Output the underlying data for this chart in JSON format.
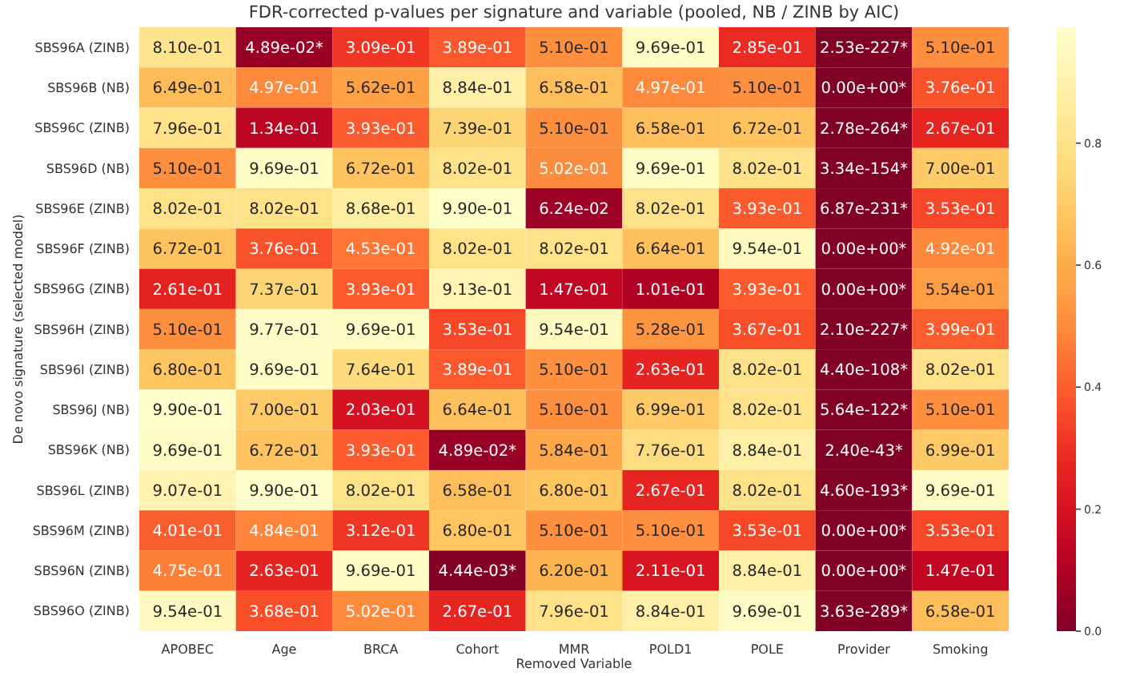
{
  "chart_data": {
    "type": "heatmap",
    "title": "FDR-corrected p-values per signature and variable (pooled, NB / ZINB by AIC)",
    "xlabel": "Removed Variable",
    "ylabel": "De novo signature (selected model)",
    "categories": [
      "APOBEC",
      "Age",
      "BRCA",
      "Cohort",
      "MMR",
      "POLD1",
      "POLE",
      "Provider",
      "Smoking"
    ],
    "y_categories": [
      "SBS96A (ZINB)",
      "SBS96B (NB)",
      "SBS96C (ZINB)",
      "SBS96D (NB)",
      "SBS96E (ZINB)",
      "SBS96F (ZINB)",
      "SBS96G (ZINB)",
      "SBS96H (ZINB)",
      "SBS96I (ZINB)",
      "SBS96J (NB)",
      "SBS96K (NB)",
      "SBS96L (ZINB)",
      "SBS96M (ZINB)",
      "SBS96N (ZINB)",
      "SBS96O (ZINB)"
    ],
    "cells": [
      [
        0.81,
        0.0489,
        0.309,
        0.389,
        0.51,
        0.969,
        0.285,
        2.53e-227,
        0.51
      ],
      [
        0.649,
        0.497,
        0.562,
        0.884,
        0.658,
        0.497,
        0.51,
        0,
        0.376
      ],
      [
        0.796,
        0.134,
        0.393,
        0.739,
        0.51,
        0.658,
        0.672,
        2.78e-264,
        0.267
      ],
      [
        0.51,
        0.969,
        0.672,
        0.802,
        0.502,
        0.969,
        0.802,
        3.34e-154,
        0.7
      ],
      [
        0.802,
        0.802,
        0.868,
        0.99,
        0.0624,
        0.802,
        0.393,
        6.87e-231,
        0.353
      ],
      [
        0.672,
        0.376,
        0.453,
        0.802,
        0.802,
        0.664,
        0.954,
        0,
        0.492
      ],
      [
        0.261,
        0.737,
        0.393,
        0.913,
        0.147,
        0.101,
        0.393,
        0,
        0.554
      ],
      [
        0.51,
        0.977,
        0.969,
        0.353,
        0.954,
        0.528,
        0.367,
        2.1e-227,
        0.399
      ],
      [
        0.68,
        0.969,
        0.764,
        0.389,
        0.51,
        0.263,
        0.802,
        4.4e-108,
        0.802
      ],
      [
        0.99,
        0.7,
        0.203,
        0.664,
        0.51,
        0.699,
        0.802,
        5.64e-122,
        0.51
      ],
      [
        0.969,
        0.672,
        0.393,
        0.0489,
        0.584,
        0.776,
        0.884,
        2.4e-43,
        0.699
      ],
      [
        0.907,
        0.99,
        0.802,
        0.658,
        0.68,
        0.267,
        0.802,
        4.6e-193,
        0.969
      ],
      [
        0.401,
        0.484,
        0.312,
        0.68,
        0.51,
        0.51,
        0.353,
        0,
        0.353
      ],
      [
        0.475,
        0.263,
        0.969,
        0.00444,
        0.62,
        0.211,
        0.884,
        0,
        0.147
      ],
      [
        0.954,
        0.368,
        0.502,
        0.267,
        0.796,
        0.884,
        0.969,
        3.63e-289,
        0.658
      ]
    ],
    "cell_labels": [
      [
        "8.10e-01",
        "4.89e-02*",
        "3.09e-01",
        "3.89e-01",
        "5.10e-01",
        "9.69e-01",
        "2.85e-01",
        "2.53e-227*",
        "5.10e-01"
      ],
      [
        "6.49e-01",
        "4.97e-01",
        "5.62e-01",
        "8.84e-01",
        "6.58e-01",
        "4.97e-01",
        "5.10e-01",
        "0.00e+00*",
        "3.76e-01"
      ],
      [
        "7.96e-01",
        "1.34e-01",
        "3.93e-01",
        "7.39e-01",
        "5.10e-01",
        "6.58e-01",
        "6.72e-01",
        "2.78e-264*",
        "2.67e-01"
      ],
      [
        "5.10e-01",
        "9.69e-01",
        "6.72e-01",
        "8.02e-01",
        "5.02e-01",
        "9.69e-01",
        "8.02e-01",
        "3.34e-154*",
        "7.00e-01"
      ],
      [
        "8.02e-01",
        "8.02e-01",
        "8.68e-01",
        "9.90e-01",
        "6.24e-02",
        "8.02e-01",
        "3.93e-01",
        "6.87e-231*",
        "3.53e-01"
      ],
      [
        "6.72e-01",
        "3.76e-01",
        "4.53e-01",
        "8.02e-01",
        "8.02e-01",
        "6.64e-01",
        "9.54e-01",
        "0.00e+00*",
        "4.92e-01"
      ],
      [
        "2.61e-01",
        "7.37e-01",
        "3.93e-01",
        "9.13e-01",
        "1.47e-01",
        "1.01e-01",
        "3.93e-01",
        "0.00e+00*",
        "5.54e-01"
      ],
      [
        "5.10e-01",
        "9.77e-01",
        "9.69e-01",
        "3.53e-01",
        "9.54e-01",
        "5.28e-01",
        "3.67e-01",
        "2.10e-227*",
        "3.99e-01"
      ],
      [
        "6.80e-01",
        "9.69e-01",
        "7.64e-01",
        "3.89e-01",
        "5.10e-01",
        "2.63e-01",
        "8.02e-01",
        "4.40e-108*",
        "8.02e-01"
      ],
      [
        "9.90e-01",
        "7.00e-01",
        "2.03e-01",
        "6.64e-01",
        "5.10e-01",
        "6.99e-01",
        "8.02e-01",
        "5.64e-122*",
        "5.10e-01"
      ],
      [
        "9.69e-01",
        "6.72e-01",
        "3.93e-01",
        "4.89e-02*",
        "5.84e-01",
        "7.76e-01",
        "8.84e-01",
        "2.40e-43*",
        "6.99e-01"
      ],
      [
        "9.07e-01",
        "9.90e-01",
        "8.02e-01",
        "6.58e-01",
        "6.80e-01",
        "2.67e-01",
        "8.02e-01",
        "4.60e-193*",
        "9.69e-01"
      ],
      [
        "4.01e-01",
        "4.84e-01",
        "3.12e-01",
        "6.80e-01",
        "5.10e-01",
        "5.10e-01",
        "3.53e-01",
        "0.00e+00*",
        "3.53e-01"
      ],
      [
        "4.75e-01",
        "2.63e-01",
        "9.69e-01",
        "4.44e-03*",
        "6.20e-01",
        "2.11e-01",
        "8.84e-01",
        "0.00e+00*",
        "1.47e-01"
      ],
      [
        "9.54e-01",
        "3.68e-01",
        "5.02e-01",
        "2.67e-01",
        "7.96e-01",
        "8.84e-01",
        "9.69e-01",
        "3.63e-289*",
        "6.58e-01"
      ]
    ],
    "clim": [
      0,
      0.99
    ],
    "cticks": [
      {
        "value": 0,
        "label": "0.0"
      },
      {
        "value": 0.2,
        "label": "0.2"
      },
      {
        "value": 0.4,
        "label": "0.4"
      },
      {
        "value": 0.6,
        "label": "0.6"
      },
      {
        "value": 0.8,
        "label": "0.8"
      }
    ]
  }
}
